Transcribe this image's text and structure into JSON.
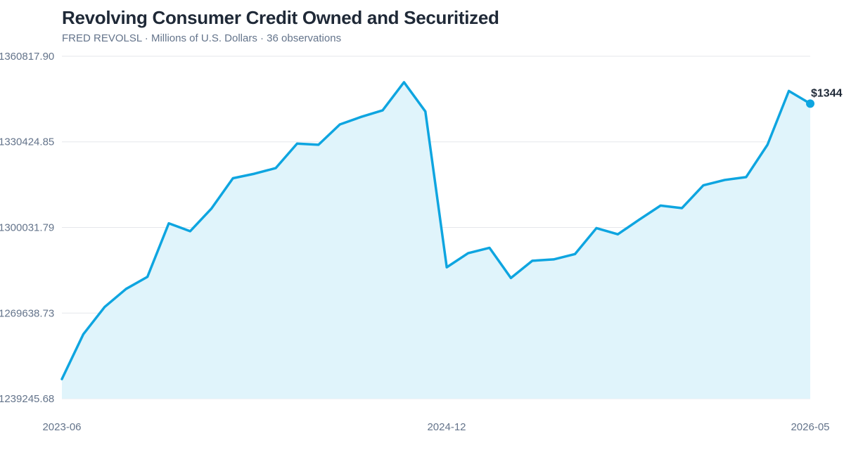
{
  "header": {
    "title": "Revolving Consumer Credit Owned and Securitized",
    "subtitle": "FRED REVOLSL · Millions of U.S. Dollars · 36 observations"
  },
  "colors": {
    "line": "#0ea5e0",
    "fill": "#e0f4fb",
    "grid": "#e5e7eb",
    "axis_text": "#64748b"
  },
  "chart_data": {
    "type": "area",
    "title": "Revolving Consumer Credit Owned and Securitized",
    "xlabel": "",
    "ylabel": "",
    "grid": true,
    "legend": "none",
    "x_start": "2023-06",
    "x_end": "2026-05",
    "x_ticks": [
      "2023-06",
      "2024-12",
      "2026-05"
    ],
    "y_ticks": [
      "1239245.68",
      "1269638.73",
      "1300031.79",
      "1330424.85",
      "1360817.90"
    ],
    "ylim": [
      1239245.68,
      1360817.9
    ],
    "last_value_label": "$1344",
    "series": [
      {
        "values": [
          1246200,
          1262100,
          1271800,
          1278200,
          1282500,
          1301500,
          1298700,
          1306800,
          1317500,
          1319100,
          1321100,
          1329800,
          1329400,
          1336600,
          1339300,
          1341600,
          1351600,
          1341200,
          1285900,
          1290900,
          1292800,
          1282100,
          1288200,
          1288700,
          1290600,
          1299800,
          1297600,
          1302800,
          1307800,
          1306900,
          1315000,
          1316900,
          1317900,
          1329400,
          1348500,
          1344000
        ]
      }
    ]
  }
}
